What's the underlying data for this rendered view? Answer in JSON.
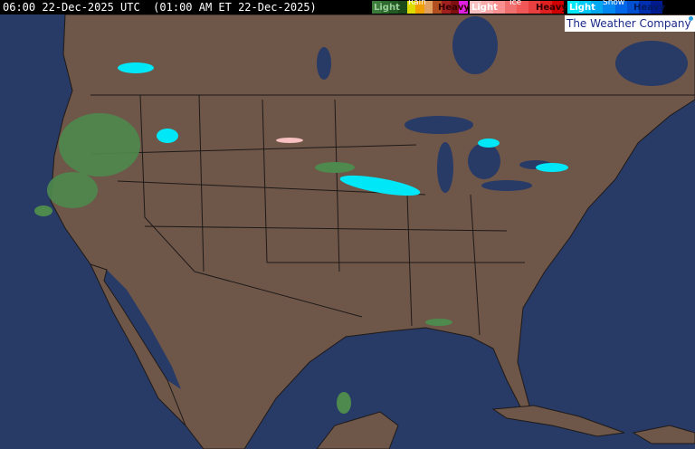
{
  "header": {
    "timestamp": "06:00 22-Dec-2025 UTC  (01:00 AM ET 22-Dec-2025)"
  },
  "legend": {
    "rain": {
      "title": "Rain",
      "light": "Light",
      "heavy": "Heavy",
      "colors": [
        "#3c7a3c",
        "#2e6a2e",
        "#245a24",
        "#1a4a1a",
        "#dcdc00",
        "#f0a000",
        "#e0a060",
        "#b05020",
        "#a02020",
        "#801010",
        "#e020e0"
      ]
    },
    "ice": {
      "title": "Ice",
      "light": "Light",
      "heavy": "Heavy",
      "colors": [
        "#f8c0c0",
        "#f8a8a8",
        "#f89090",
        "#f07070",
        "#f05858",
        "#e84040",
        "#e02020",
        "#d00000"
      ]
    },
    "snow": {
      "title": "Snow",
      "light": "Light",
      "heavy": "Heavy",
      "colors": [
        "#00e8f8",
        "#00c8f8",
        "#00a8f0",
        "#0088f0",
        "#0068e8",
        "#0050d0",
        "#0030b0",
        "#001a90"
      ]
    }
  },
  "brand": {
    "logo_text": "The Weather Company"
  },
  "colors": {
    "ocean": "#283a66",
    "land": "#6e5649",
    "borders": "#1e1a18",
    "snow": "#00e8f8",
    "rain": "#4e8a4e"
  }
}
